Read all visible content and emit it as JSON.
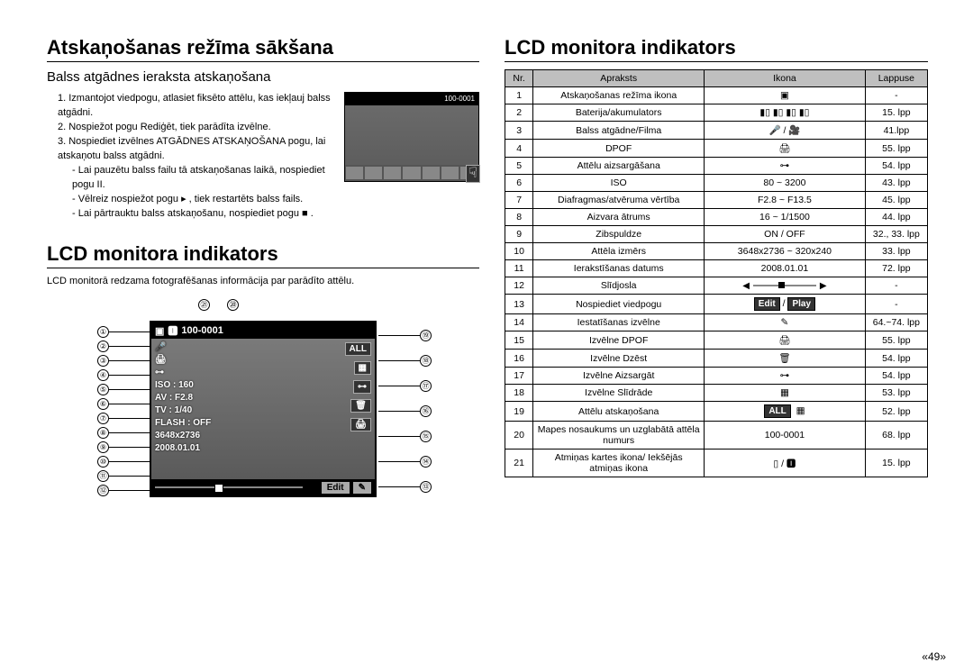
{
  "left": {
    "title": "Atskaņošanas režīma sākšana",
    "subhead": "Balss atgādnes ieraksta atskaņošana",
    "step1": "1. Izmantojot viedpogu, atlasiet fiksēto attēlu, kas iekļauj balss atgādni.",
    "step2": "2. Nospiežot pogu Rediģēt, tiek parādīta izvēlne.",
    "step3": "3. Nospiediet izvēlnes ATGĀDNES ATSKAŅOŠANA pogu, lai atskaņotu balss atgādni.",
    "sub1": "- Lai pauzētu balss failu tā atskaņošanas laikā, nospiediet pogu II.",
    "sub2": "- Vēlreiz nospiežot pogu ▸ , tiek restartēts balss fails.",
    "sub3": "- Lai pārtrauktu balss atskaņošanu, nospiediet pogu ■ .",
    "thumb_label": "100-0001",
    "title2": "LCD monitora indikators",
    "desc2": "LCD monitorā redzama fotografēšanas informācija par parādīto attēlu.",
    "lcd": {
      "file": "100-0001",
      "iso": "ISO : 160",
      "av": "AV : F2.8",
      "tv": "TV : 1/40",
      "flash": "FLASH : OFF",
      "size": "3648x2736",
      "date": "2008.01.01",
      "all": "ALL",
      "edit": "Edit"
    },
    "callouts_left": [
      "①",
      "②",
      "③",
      "④",
      "⑤",
      "⑥",
      "⑦",
      "⑧",
      "⑨",
      "⑩",
      "⑪",
      "⑫"
    ],
    "callouts_right": [
      "⑲",
      "⑱",
      "⑰",
      "⑯",
      "⑮",
      "⑭",
      "⑬"
    ],
    "callouts_top": [
      "㉑",
      "⑳"
    ]
  },
  "right": {
    "title": "LCD monitora indikators",
    "headers": [
      "Nr.",
      "Apraksts",
      "Ikona",
      "Lappuse"
    ],
    "rows": [
      {
        "n": "1",
        "d": "Atskaņošanas režīma ikona",
        "i": "▣",
        "p": "-"
      },
      {
        "n": "2",
        "d": "Baterija/akumulators",
        "i": "▮▯ ▮▯ ▮▯ ▮▯",
        "p": "15. lpp"
      },
      {
        "n": "3",
        "d": "Balss atgādne/Filma",
        "i": "🎤 / 🎥",
        "p": "41.lpp"
      },
      {
        "n": "4",
        "d": "DPOF",
        "i": "🖨",
        "p": "55. lpp"
      },
      {
        "n": "5",
        "d": "Attēlu aizsargāšana",
        "i": "⊶",
        "p": "54. lpp"
      },
      {
        "n": "6",
        "d": "ISO",
        "i": "80 ~ 3200",
        "p": "43. lpp"
      },
      {
        "n": "7",
        "d": "Diafragmas/atvēruma vērtība",
        "i": "F2.8 ~ F13.5",
        "p": "45. lpp"
      },
      {
        "n": "8",
        "d": "Aizvara ātrums",
        "i": "16 ~ 1/1500",
        "p": "44. lpp"
      },
      {
        "n": "9",
        "d": "Zibspuldze",
        "i": "ON / OFF",
        "p": "32., 33. lpp"
      },
      {
        "n": "10",
        "d": "Attēla izmērs",
        "i": "3648x2736 ~ 320x240",
        "p": "33. lpp"
      },
      {
        "n": "11",
        "d": "Ierakstīšanas datums",
        "i": "2008.01.01",
        "p": "72. lpp"
      },
      {
        "n": "12",
        "d": "Slīdjosla",
        "i": "slider",
        "p": "-"
      },
      {
        "n": "13",
        "d": "Nospiediet viedpogu",
        "i": "editplay",
        "p": "-"
      },
      {
        "n": "14",
        "d": "Iestatīšanas izvēlne",
        "i": "✎",
        "p": "64.~74. lpp"
      },
      {
        "n": "15",
        "d": "Izvēlne DPOF",
        "i": "🖨",
        "p": "55. lpp"
      },
      {
        "n": "16",
        "d": "Izvēlne Dzēst",
        "i": "🗑",
        "p": "54. lpp"
      },
      {
        "n": "17",
        "d": "Izvēlne Aizsargāt",
        "i": "⊶",
        "p": "54. lpp"
      },
      {
        "n": "18",
        "d": "Izvēlne Slīdrāde",
        "i": "▦",
        "p": "53. lpp"
      },
      {
        "n": "19",
        "d": "Attēlu atskaņošana",
        "i": "allplay",
        "p": "52. lpp"
      },
      {
        "n": "20",
        "d": "Mapes nosaukums un uzglabātā attēla numurs",
        "i": "100-0001",
        "p": "68. lpp"
      },
      {
        "n": "21",
        "d": "Atmiņas kartes ikona/ Iekšējās atmiņas ikona",
        "i": "▯ / 🅸",
        "p": "15. lpp"
      }
    ],
    "editplay": {
      "edit": "Edit",
      "play": "Play"
    },
    "allplay": "ALL"
  },
  "pagenum": "«49»"
}
